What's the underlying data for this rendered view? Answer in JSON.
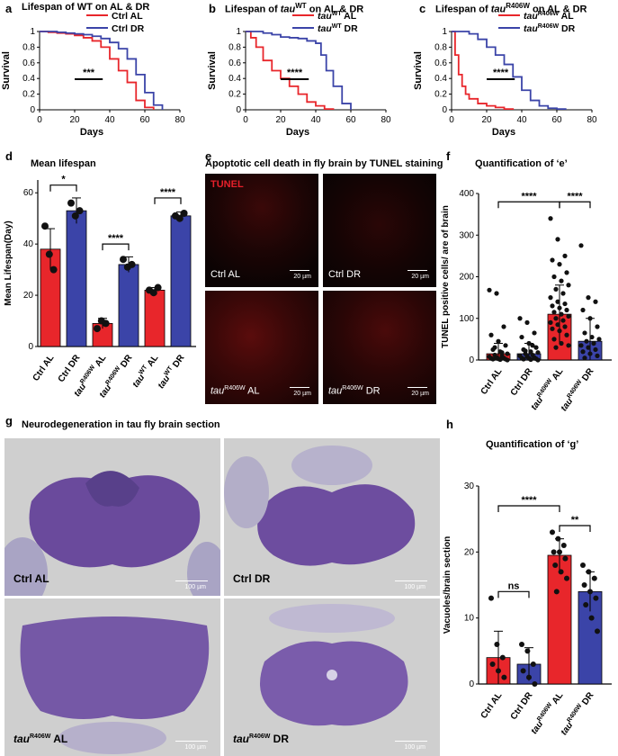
{
  "panels": {
    "a": {
      "label": "a",
      "title": "Lifespan of WT on AL & DR",
      "legend": [
        "Ctrl AL",
        "Ctrl DR"
      ],
      "sig": "***"
    },
    "b": {
      "label": "b",
      "title_pre": "Lifespan of ",
      "title_it": "tau",
      "title_sup": "WT",
      "title_post": " on AL & DR",
      "legend": [
        {
          "it": "tau",
          "sup": "WT",
          "rest": " AL"
        },
        {
          "it": "tau",
          "sup": "WT",
          "rest": " DR"
        }
      ],
      "sig": "****"
    },
    "c": {
      "label": "c",
      "title_pre": "Lifespan of ",
      "title_it": "tau",
      "title_sup": "R406W",
      "title_post": " on AL & DR",
      "legend": [
        {
          "it": "tau",
          "sup": "R406W",
          "rest": " AL"
        },
        {
          "it": "tau",
          "sup": "R406W",
          "rest": " DR"
        }
      ],
      "sig": "****"
    },
    "d": {
      "label": "d",
      "title": "Mean lifespan"
    },
    "e": {
      "label": "e",
      "title": "Apoptotic cell death in fly brain by TUNEL staining",
      "stain": "TUNEL",
      "scale": "20 µm",
      "images": [
        {
          "label": "Ctrl AL"
        },
        {
          "label": "Ctrl DR"
        },
        {
          "it": "tau",
          "sup": "R406W",
          "rest": " AL"
        },
        {
          "it": "tau",
          "sup": "R406W",
          "rest": " DR"
        }
      ]
    },
    "f": {
      "label": "f",
      "title": "Quantification of ‘e’"
    },
    "g": {
      "label": "g",
      "title": "Neurodegeneration in tau fly brain section",
      "scale": "100 µm",
      "images": [
        {
          "label": "Ctrl AL"
        },
        {
          "label": "Ctrl DR"
        },
        {
          "it": "tau",
          "sup": "R406W",
          "rest": " AL"
        },
        {
          "it": "tau",
          "sup": "R406W",
          "rest": " DR"
        }
      ]
    },
    "h": {
      "label": "h",
      "title": "Quantification of ‘g’"
    }
  },
  "colors": {
    "red": "#e8262b",
    "blue": "#3b44a8",
    "dot": "#111111"
  },
  "chart_data": [
    {
      "id": "a",
      "type": "line",
      "xlabel": "Days",
      "ylabel": "Survival",
      "xlim": [
        0,
        80
      ],
      "ylim": [
        0,
        1
      ],
      "xticks": [
        "0",
        "20",
        "40",
        "60",
        "80"
      ],
      "yticks": [
        "0",
        "0.2",
        "0.4",
        "0.6",
        "0.8",
        "1"
      ],
      "series": [
        {
          "name": "Ctrl AL",
          "color": "red",
          "x": [
            0,
            5,
            10,
            15,
            20,
            25,
            30,
            35,
            40,
            45,
            50,
            55,
            60,
            65
          ],
          "y": [
            1,
            0.99,
            0.98,
            0.97,
            0.95,
            0.92,
            0.88,
            0.8,
            0.65,
            0.5,
            0.35,
            0.12,
            0.03,
            0
          ]
        },
        {
          "name": "Ctrl DR",
          "color": "blue",
          "x": [
            0,
            5,
            10,
            15,
            20,
            25,
            30,
            35,
            40,
            45,
            50,
            55,
            60,
            65,
            70
          ],
          "y": [
            1,
            1,
            0.99,
            0.98,
            0.97,
            0.96,
            0.94,
            0.91,
            0.86,
            0.78,
            0.65,
            0.45,
            0.22,
            0.06,
            0
          ]
        }
      ]
    },
    {
      "id": "b",
      "type": "line",
      "xlabel": "Days",
      "ylabel": "Survival",
      "xlim": [
        0,
        80
      ],
      "ylim": [
        0,
        1
      ],
      "xticks": [
        "0",
        "20",
        "40",
        "60",
        "80"
      ],
      "yticks": [
        "0",
        "0.2",
        "0.4",
        "0.6",
        "0.8",
        "1"
      ],
      "series": [
        {
          "name": "tauWT AL",
          "color": "red",
          "x": [
            0,
            3,
            6,
            10,
            15,
            20,
            25,
            30,
            35,
            40,
            45,
            50
          ],
          "y": [
            1,
            0.92,
            0.8,
            0.63,
            0.5,
            0.4,
            0.3,
            0.2,
            0.1,
            0.05,
            0.01,
            0
          ]
        },
        {
          "name": "tauWT DR",
          "color": "blue",
          "x": [
            0,
            5,
            10,
            15,
            20,
            25,
            30,
            35,
            40,
            43,
            46,
            50,
            55,
            60
          ],
          "y": [
            1,
            1,
            0.98,
            0.96,
            0.93,
            0.92,
            0.91,
            0.88,
            0.85,
            0.7,
            0.5,
            0.3,
            0.08,
            0
          ]
        }
      ]
    },
    {
      "id": "c",
      "type": "line",
      "xlabel": "Days",
      "ylabel": "Survival",
      "xlim": [
        0,
        80
      ],
      "ylim": [
        0,
        1
      ],
      "xticks": [
        "0",
        "20",
        "40",
        "60",
        "80"
      ],
      "yticks": [
        "0",
        "0.2",
        "0.4",
        "0.6",
        "0.8",
        "1"
      ],
      "series": [
        {
          "name": "tauR406W AL",
          "color": "red",
          "x": [
            0,
            2,
            4,
            6,
            8,
            10,
            15,
            20,
            25,
            30,
            35
          ],
          "y": [
            1,
            0.7,
            0.45,
            0.3,
            0.2,
            0.14,
            0.08,
            0.05,
            0.03,
            0.01,
            0
          ]
        },
        {
          "name": "tauR406W DR",
          "color": "blue",
          "x": [
            0,
            5,
            10,
            15,
            20,
            25,
            30,
            35,
            40,
            45,
            50,
            55,
            60,
            65
          ],
          "y": [
            1,
            1,
            0.97,
            0.9,
            0.8,
            0.7,
            0.58,
            0.42,
            0.25,
            0.12,
            0.05,
            0.02,
            0.01,
            0
          ]
        }
      ]
    },
    {
      "id": "d",
      "type": "bar",
      "ylabel": "Mean Lifespan(Day)",
      "ylim": [
        0,
        65
      ],
      "yticks": [
        "0",
        "20",
        "40",
        "60"
      ],
      "categories": [
        {
          "text": "Ctrl AL"
        },
        {
          "text": "Ctrl DR"
        },
        {
          "it": "tau",
          "sup": "R406W",
          "rest": " AL"
        },
        {
          "it": "tau",
          "sup": "R406W",
          "rest": " DR"
        },
        {
          "it": "tau",
          "sup": "WT",
          "rest": " AL"
        },
        {
          "it": "tau",
          "sup": "WT",
          "rest": " DR"
        }
      ],
      "colors": [
        "red",
        "blue",
        "red",
        "blue",
        "red",
        "blue"
      ],
      "values": [
        38,
        53,
        9,
        32,
        22,
        51
      ],
      "errors": [
        8,
        5,
        2,
        3,
        1,
        1.5
      ],
      "points": [
        [
          47,
          36,
          30
        ],
        [
          56,
          51,
          53
        ],
        [
          7,
          10,
          9
        ],
        [
          34,
          31,
          32
        ],
        [
          22,
          21,
          23
        ],
        [
          51,
          50,
          52
        ]
      ],
      "comparisons": [
        {
          "from": 0,
          "to": 1,
          "label": "*",
          "level": 63
        },
        {
          "from": 2,
          "to": 3,
          "label": "****",
          "level": 40
        },
        {
          "from": 4,
          "to": 5,
          "label": "****",
          "level": 58
        }
      ]
    },
    {
      "id": "f",
      "type": "bar",
      "ylabel": "TUNEL positive cells/ are of brain",
      "ylim": [
        0,
        400
      ],
      "yticks": [
        "0",
        "100",
        "200",
        "300",
        "400"
      ],
      "categories": [
        {
          "text": "Ctrl AL"
        },
        {
          "text": "Ctrl DR"
        },
        {
          "it": "tau",
          "sup": "R406W",
          "rest": " AL"
        },
        {
          "it": "tau",
          "sup": "R406W",
          "rest": " DR"
        }
      ],
      "colors": [
        "red",
        "blue",
        "red",
        "blue"
      ],
      "values": [
        15,
        15,
        110,
        45
      ],
      "errors": [
        25,
        25,
        70,
        55
      ],
      "points": [
        [
          168,
          160,
          80,
          60,
          45,
          35,
          25,
          20,
          15,
          12,
          10,
          8,
          6,
          5,
          4,
          3,
          2,
          2,
          1,
          0,
          30,
          18
        ],
        [
          100,
          90,
          65,
          55,
          40,
          30,
          25,
          20,
          18,
          15,
          12,
          10,
          8,
          6,
          5,
          4,
          3,
          2,
          1,
          0,
          22,
          35
        ],
        [
          340,
          290,
          250,
          240,
          230,
          210,
          200,
          190,
          180,
          170,
          160,
          150,
          140,
          135,
          130,
          125,
          120,
          115,
          110,
          105,
          100,
          95,
          90,
          85,
          80,
          75,
          70,
          60,
          50,
          40,
          35,
          30
        ],
        [
          275,
          150,
          140,
          120,
          100,
          80,
          65,
          55,
          50,
          45,
          40,
          35,
          30,
          25,
          20,
          15,
          10,
          5
        ]
      ],
      "comparisons": [
        {
          "from": 0,
          "to": 2,
          "label": "****",
          "level": 380
        },
        {
          "from": 2,
          "to": 3,
          "label": "****",
          "level": 380
        }
      ]
    },
    {
      "id": "h",
      "type": "bar",
      "ylabel": "Vacuoles/brain section",
      "ylim": [
        0,
        30
      ],
      "yticks": [
        "0",
        "10",
        "20",
        "30"
      ],
      "categories": [
        {
          "text": "Ctrl AL"
        },
        {
          "text": "Ctrl DR"
        },
        {
          "it": "tau",
          "sup": "R406W",
          "rest": " AL"
        },
        {
          "it": "tau",
          "sup": "R406W",
          "rest": " DR"
        }
      ],
      "colors": [
        "red",
        "blue",
        "red",
        "blue"
      ],
      "values": [
        4,
        3,
        19.5,
        14
      ],
      "errors": [
        4,
        2.5,
        2.5,
        3
      ],
      "points": [
        [
          13,
          6,
          4,
          3,
          2,
          1
        ],
        [
          6,
          5,
          3,
          2,
          1,
          0
        ],
        [
          23,
          22,
          21,
          20,
          20,
          19,
          18,
          17,
          16,
          14
        ],
        [
          18,
          17,
          16,
          15,
          14,
          13,
          12,
          10,
          8
        ]
      ],
      "comparisons": [
        {
          "from": 0,
          "to": 1,
          "label": "ns",
          "level": 14
        },
        {
          "from": 0,
          "to": 2,
          "label": "****",
          "level": 27
        },
        {
          "from": 2,
          "to": 3,
          "label": "**",
          "level": 24
        }
      ]
    }
  ]
}
